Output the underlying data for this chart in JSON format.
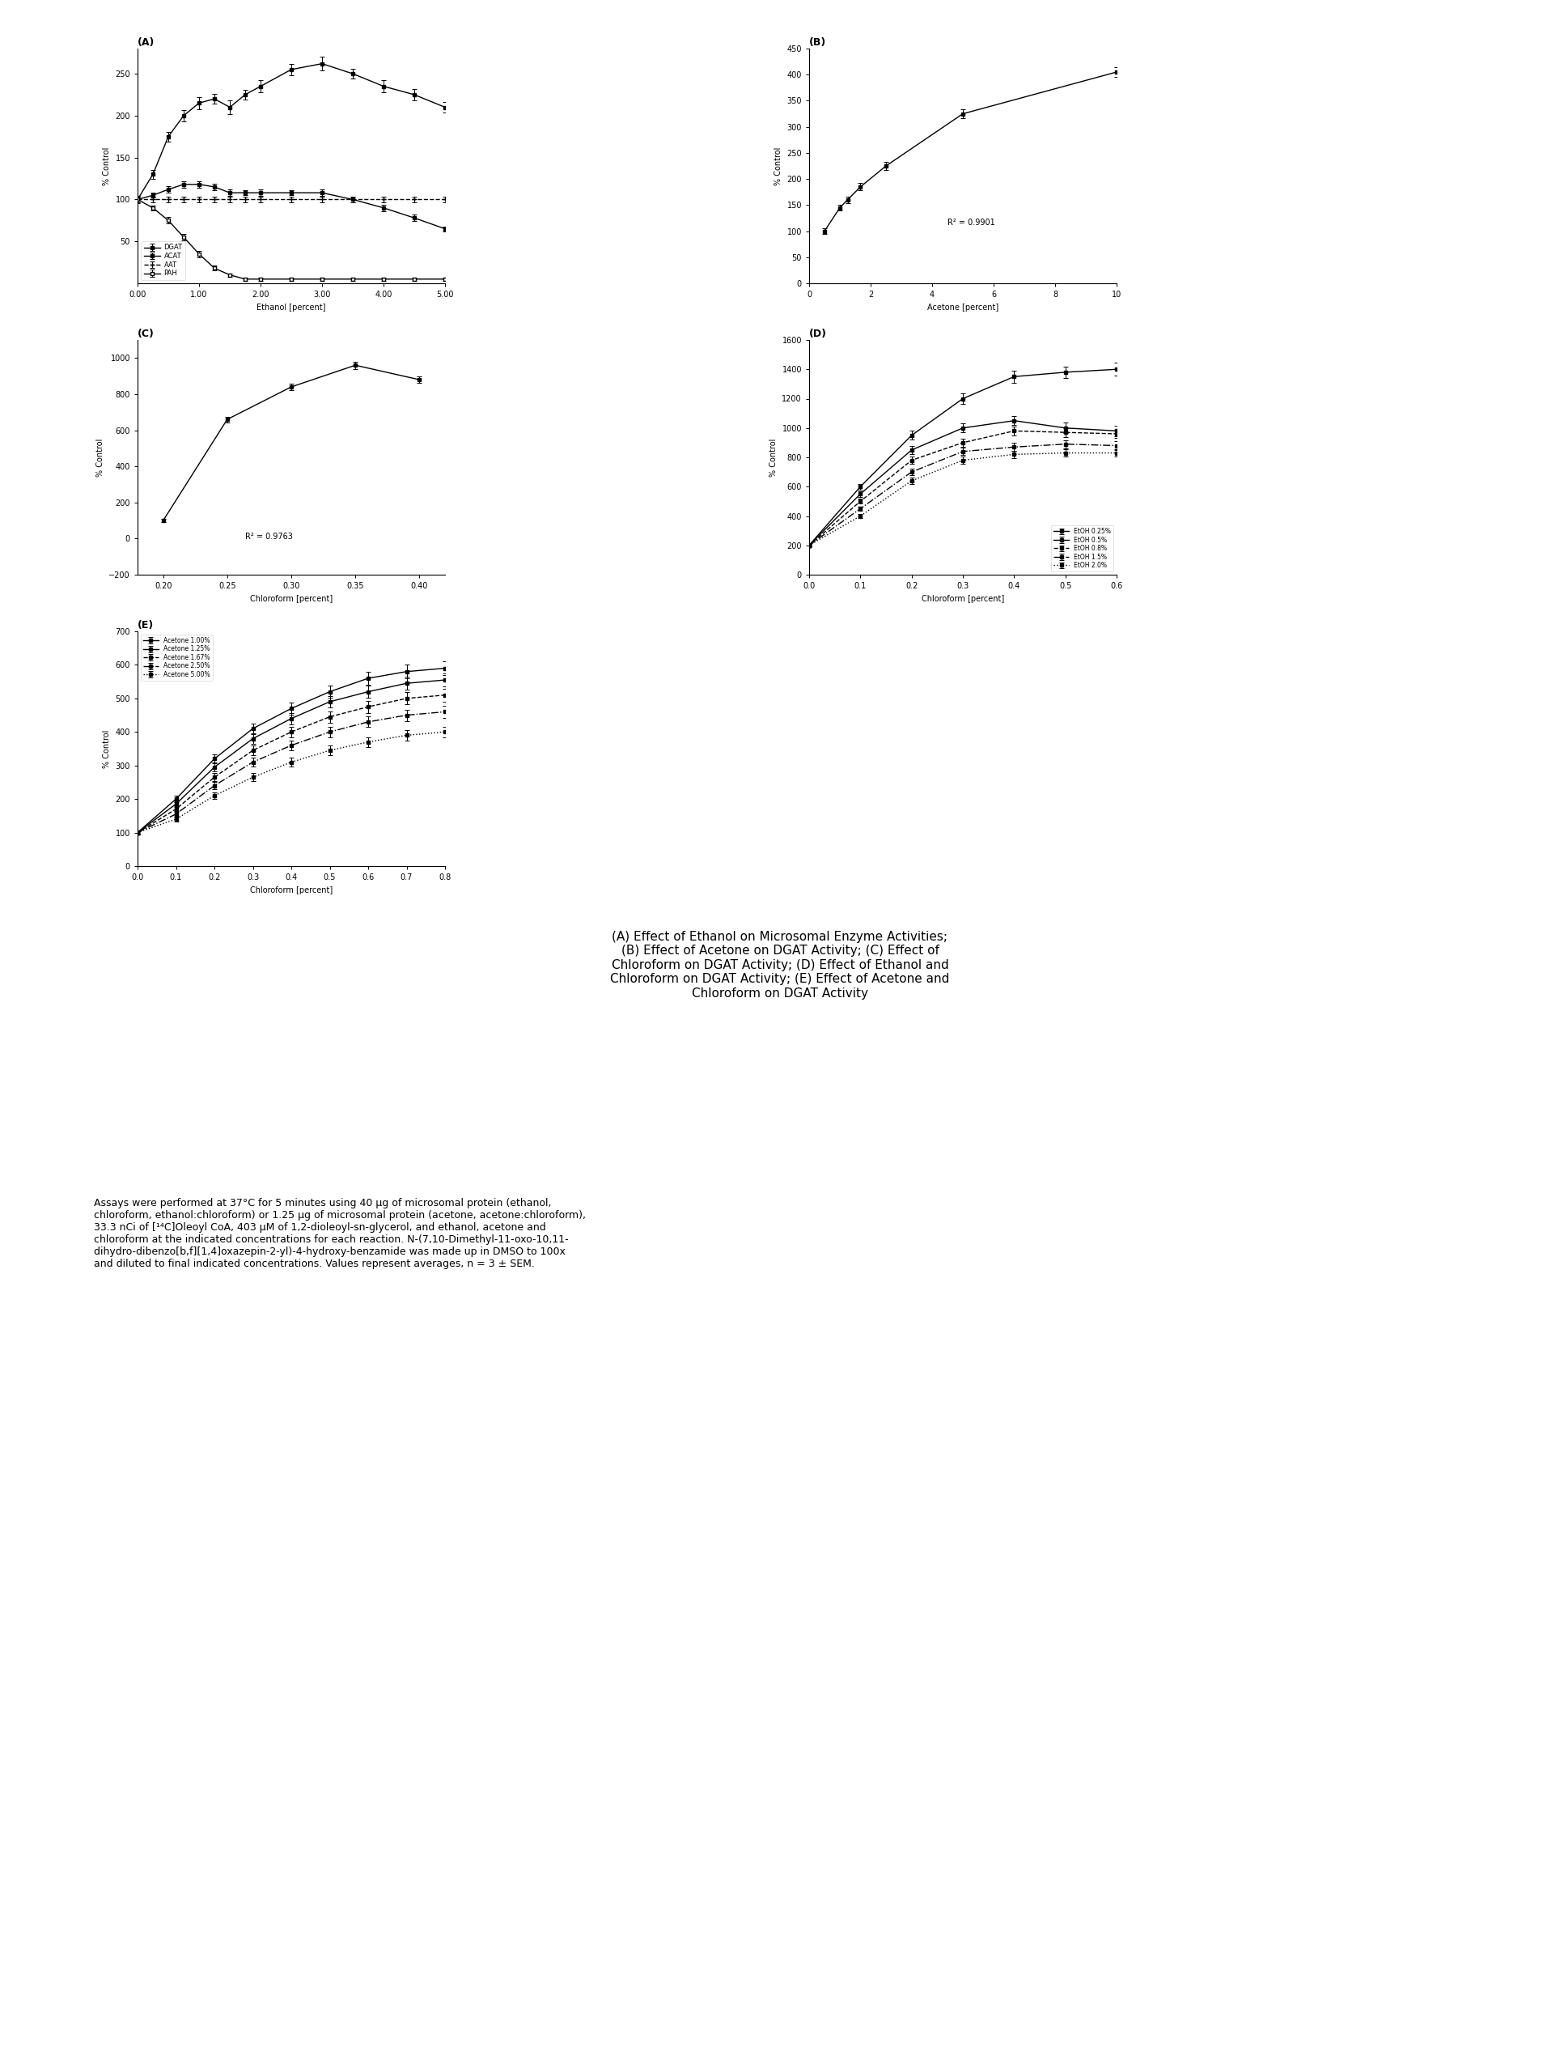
{
  "panel_A": {
    "title": "(A)",
    "xlabel": "Ethanol [percent]",
    "ylabel": "% Control",
    "xlim": [
      0.0,
      5.0
    ],
    "ylim": [
      0,
      280
    ],
    "yticks": [
      50,
      100,
      150,
      200,
      250
    ],
    "xticks": [
      0.0,
      1.0,
      2.0,
      3.0,
      4.0,
      5.0
    ],
    "xticklabels": [
      "0.00",
      "1.00",
      "2.00",
      "3.00",
      "4.00",
      "5.00"
    ],
    "series": {
      "DGAT": {
        "x": [
          0.0,
          0.25,
          0.5,
          0.75,
          1.0,
          1.25,
          1.5,
          1.75,
          2.0,
          2.5,
          3.0,
          3.5,
          4.0,
          4.5,
          5.0
        ],
        "y": [
          100,
          130,
          175,
          200,
          215,
          220,
          210,
          225,
          235,
          255,
          262,
          250,
          235,
          225,
          210
        ],
        "yerr": [
          4,
          5,
          6,
          7,
          7,
          6,
          8,
          6,
          7,
          7,
          8,
          6,
          7,
          7,
          6
        ]
      },
      "ACAT": {
        "x": [
          0.0,
          0.25,
          0.5,
          0.75,
          1.0,
          1.25,
          1.5,
          1.75,
          2.0,
          2.5,
          3.0,
          3.5,
          4.0,
          4.5,
          5.0
        ],
        "y": [
          100,
          105,
          112,
          118,
          118,
          115,
          108,
          108,
          108,
          108,
          108,
          100,
          90,
          78,
          65
        ],
        "yerr": [
          3,
          3,
          4,
          4,
          4,
          4,
          4,
          3,
          4,
          3,
          4,
          3,
          4,
          4,
          3
        ]
      },
      "AAT": {
        "x": [
          0.0,
          0.25,
          0.5,
          0.75,
          1.0,
          1.25,
          1.5,
          1.75,
          2.0,
          2.5,
          3.0,
          3.5,
          4.0,
          4.5,
          5.0
        ],
        "y": [
          100,
          100,
          100,
          100,
          100,
          100,
          100,
          100,
          100,
          100,
          100,
          100,
          100,
          100,
          100
        ],
        "yerr": [
          3,
          3,
          3,
          3,
          3,
          3,
          3,
          3,
          3,
          3,
          3,
          3,
          3,
          3,
          3
        ]
      },
      "PAH": {
        "x": [
          0.0,
          0.25,
          0.5,
          0.75,
          1.0,
          1.25,
          1.5,
          1.75,
          2.0,
          2.5,
          3.0,
          3.5,
          4.0,
          4.5,
          5.0
        ],
        "y": [
          100,
          90,
          75,
          55,
          35,
          18,
          10,
          5,
          5,
          5,
          5,
          5,
          5,
          5,
          5
        ],
        "yerr": [
          3,
          3,
          4,
          4,
          4,
          3,
          2,
          2,
          2,
          2,
          2,
          2,
          2,
          2,
          2
        ]
      }
    },
    "legend_labels": [
      "DGAT",
      "ACAT",
      "AAT",
      "PAH"
    ],
    "legend_markers": [
      "s",
      "s",
      "+",
      "s"
    ],
    "legend_linestyles": [
      "-",
      "-",
      "--",
      "-"
    ]
  },
  "panel_B": {
    "title": "(B)",
    "xlabel": "Acetone [percent]",
    "ylabel": "% Control",
    "xlim": [
      0,
      10
    ],
    "ylim": [
      0,
      450
    ],
    "yticks": [
      0,
      50,
      100,
      150,
      200,
      250,
      300,
      350,
      400,
      450
    ],
    "xticks": [
      0,
      2,
      4,
      6,
      8,
      10
    ],
    "x": [
      0.5,
      1.0,
      1.25,
      1.67,
      2.5,
      5.0,
      10.0
    ],
    "y": [
      100,
      145,
      160,
      185,
      225,
      325,
      405
    ],
    "yerr": [
      5,
      6,
      6,
      7,
      8,
      9,
      10
    ],
    "r2": "R² = 0.9901",
    "r2_x": 0.45,
    "r2_y": 0.25
  },
  "panel_C": {
    "title": "(C)",
    "xlabel": "Chloroform [percent]",
    "ylabel": "% Control",
    "xlim": [
      0.18,
      0.42
    ],
    "ylim": [
      -200,
      1100
    ],
    "yticks": [
      -200,
      0,
      200,
      400,
      600,
      800,
      1000
    ],
    "xticks": [
      0.2,
      0.25,
      0.3,
      0.35,
      0.4
    ],
    "x": [
      0.2,
      0.25,
      0.3,
      0.35,
      0.4
    ],
    "y": [
      100,
      660,
      840,
      960,
      880
    ],
    "yerr": [
      8,
      15,
      20,
      20,
      18
    ],
    "r2": "R² = 0.9763",
    "r2_x": 0.35,
    "r2_y": 0.15
  },
  "panel_D": {
    "title": "(D)",
    "xlabel": "Chloroform [percent]",
    "ylabel": "% Control",
    "xlim": [
      0.0,
      0.6
    ],
    "ylim": [
      0,
      1600
    ],
    "yticks": [
      0,
      200,
      400,
      600,
      800,
      1000,
      1200,
      1400,
      1600
    ],
    "xticks": [
      0.0,
      0.1,
      0.2,
      0.3,
      0.4,
      0.5,
      0.6
    ],
    "series": {
      "EtOH 0.25%": {
        "x": [
          0.0,
          0.1,
          0.2,
          0.3,
          0.4,
          0.5,
          0.6
        ],
        "y": [
          200,
          600,
          950,
          1200,
          1350,
          1380,
          1400
        ],
        "yerr": [
          8,
          20,
          30,
          35,
          40,
          40,
          45
        ]
      },
      "EtOH 0.5%": {
        "x": [
          0.0,
          0.1,
          0.2,
          0.3,
          0.4,
          0.5,
          0.6
        ],
        "y": [
          200,
          550,
          850,
          1000,
          1050,
          1000,
          980
        ],
        "yerr": [
          8,
          18,
          28,
          30,
          30,
          35,
          35
        ]
      },
      "EtOH 0.8%": {
        "x": [
          0.0,
          0.1,
          0.2,
          0.3,
          0.4,
          0.5,
          0.6
        ],
        "y": [
          200,
          500,
          780,
          900,
          980,
          970,
          960
        ],
        "yerr": [
          8,
          16,
          24,
          28,
          30,
          30,
          30
        ]
      },
      "EtOH 1.5%": {
        "x": [
          0.0,
          0.1,
          0.2,
          0.3,
          0.4,
          0.5,
          0.6
        ],
        "y": [
          200,
          450,
          700,
          840,
          870,
          890,
          880
        ],
        "yerr": [
          8,
          15,
          22,
          26,
          28,
          28,
          28
        ]
      },
      "EtOH 2.0%": {
        "x": [
          0.0,
          0.1,
          0.2,
          0.3,
          0.4,
          0.5,
          0.6
        ],
        "y": [
          200,
          400,
          640,
          780,
          820,
          830,
          830
        ],
        "yerr": [
          8,
          14,
          20,
          24,
          26,
          26,
          26
        ]
      }
    },
    "legend_labels": [
      "EtOH 0.25%",
      "EtOH 0.5%",
      "EtOH 0.8%",
      "EtOH 1.5%",
      "EtOH 2.0%"
    ]
  },
  "panel_E": {
    "title": "(E)",
    "xlabel": "Chloroform [percent]",
    "ylabel": "% Control",
    "xlim": [
      0,
      0.8
    ],
    "ylim": [
      0,
      700
    ],
    "yticks": [
      0,
      100,
      200,
      300,
      400,
      500,
      600,
      700
    ],
    "xticks": [
      0,
      0.1,
      0.2,
      0.3,
      0.4,
      0.5,
      0.6,
      0.7,
      0.8
    ],
    "series": {
      "Acetone 1.00%": {
        "x": [
          0.0,
          0.1,
          0.2,
          0.3,
          0.4,
          0.5,
          0.6,
          0.7,
          0.8
        ],
        "y": [
          100,
          200,
          320,
          410,
          470,
          520,
          560,
          580,
          590
        ],
        "yerr": [
          5,
          10,
          14,
          16,
          18,
          19,
          20,
          20,
          20
        ]
      },
      "Acetone 1.25%": {
        "x": [
          0.0,
          0.1,
          0.2,
          0.3,
          0.4,
          0.5,
          0.6,
          0.7,
          0.8
        ],
        "y": [
          100,
          185,
          295,
          380,
          440,
          490,
          520,
          545,
          555
        ],
        "yerr": [
          5,
          9,
          13,
          15,
          17,
          18,
          19,
          19,
          20
        ]
      },
      "Acetone 1.67%": {
        "x": [
          0.0,
          0.1,
          0.2,
          0.3,
          0.4,
          0.5,
          0.6,
          0.7,
          0.8
        ],
        "y": [
          100,
          170,
          265,
          345,
          400,
          445,
          475,
          500,
          510
        ],
        "yerr": [
          5,
          8,
          12,
          14,
          16,
          17,
          18,
          18,
          19
        ]
      },
      "Acetone 2.50%": {
        "x": [
          0.0,
          0.1,
          0.2,
          0.3,
          0.4,
          0.5,
          0.6,
          0.7,
          0.8
        ],
        "y": [
          100,
          155,
          240,
          310,
          360,
          400,
          430,
          450,
          460
        ],
        "yerr": [
          5,
          8,
          11,
          13,
          14,
          16,
          16,
          17,
          18
        ]
      },
      "Acetone 5.00%": {
        "x": [
          0.0,
          0.1,
          0.2,
          0.3,
          0.4,
          0.5,
          0.6,
          0.7,
          0.8
        ],
        "y": [
          100,
          140,
          210,
          265,
          310,
          345,
          370,
          390,
          400
        ],
        "yerr": [
          5,
          7,
          10,
          12,
          13,
          14,
          15,
          15,
          16
        ]
      }
    },
    "legend_labels": [
      "Acetone 1.00%",
      "Acetone 1.25%",
      "Acetone 1.67%",
      "Acetone 2.50%",
      "Acetone 5.00%"
    ]
  },
  "caption_bold": "(A) Effect of Ethanol on Microsomal Enzyme Activities;\n(B) Effect of Acetone on DGAT Activity; (C) Effect of\nChloroform on DGAT Activity; (D) Effect of Ethanol and\nChloroform on DGAT Activity; (E) Effect of Acetone and\nChloroform on DGAT Activity",
  "footnote": "Assays were performed at 37°C for 5 minutes using 40 μg of microsomal protein (ethanol,\nchloroform, ethanol:chloroform) or 1.25 μg of microsomal protein (acetone, acetone:chloroform),\n33.3 nCi of [¹⁴C]Oleoyl CoA, 403 μM of 1,2-dioleoyl-sn-glycerol, and ethanol, acetone and\nchloroform at the indicated concentrations for each reaction. N-(7,10-Dimethyl-11-oxo-10,11-\ndihydro-dibenzo[b,f][1,4]oxazepin-2-yl)-4-hydroxy-benzamide was made up in DMSO to 100x\nand diluted to final indicated concentrations. Values represent averages, n = 3 ± SEM."
}
